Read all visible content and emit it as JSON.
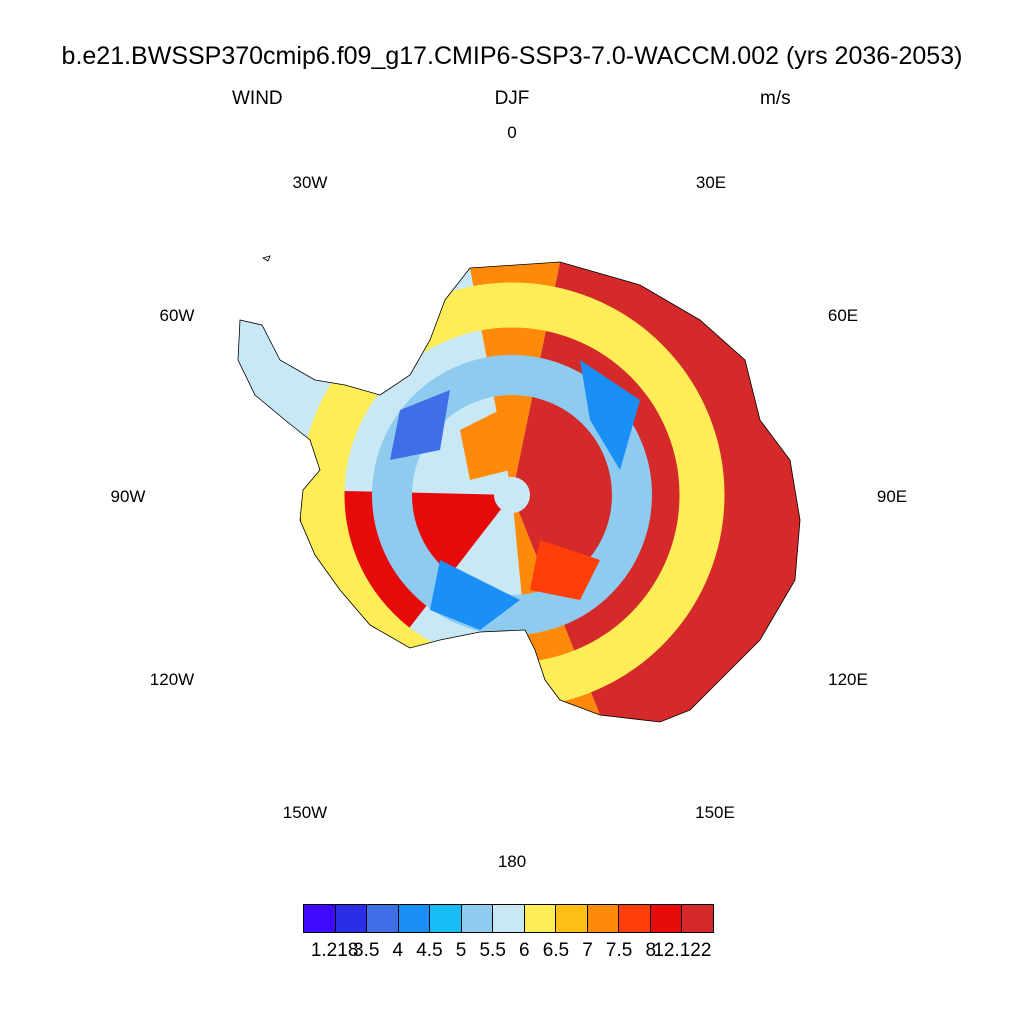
{
  "title": "b.e21.BWSSP370cmip6.f09_g17.CMIP6-SSP3-7.0-WACCM.002 (yrs 2036-2053)",
  "left_label": "WIND",
  "center_label": "DJF",
  "right_label": "m/s",
  "longitude_labels": [
    "0",
    "30E",
    "60E",
    "90E",
    "120E",
    "150E",
    "180",
    "150W",
    "120W",
    "90W",
    "60W",
    "30W"
  ],
  "colorbar": {
    "colors": [
      "#3f0aff",
      "#2a2ee5",
      "#3f6fe6",
      "#1a8ff5",
      "#19bdf5",
      "#8fcbef",
      "#c9e8f6",
      "#ffed58",
      "#ffbd18",
      "#ff8a0a",
      "#ff3e0a",
      "#e60a0a",
      "#d42a2a"
    ],
    "labels": [
      "1.218",
      "3.5",
      "4",
      "4.5",
      "5",
      "5.5",
      "6",
      "6.5",
      "7",
      "7.5",
      "8",
      "12.122"
    ]
  }
}
